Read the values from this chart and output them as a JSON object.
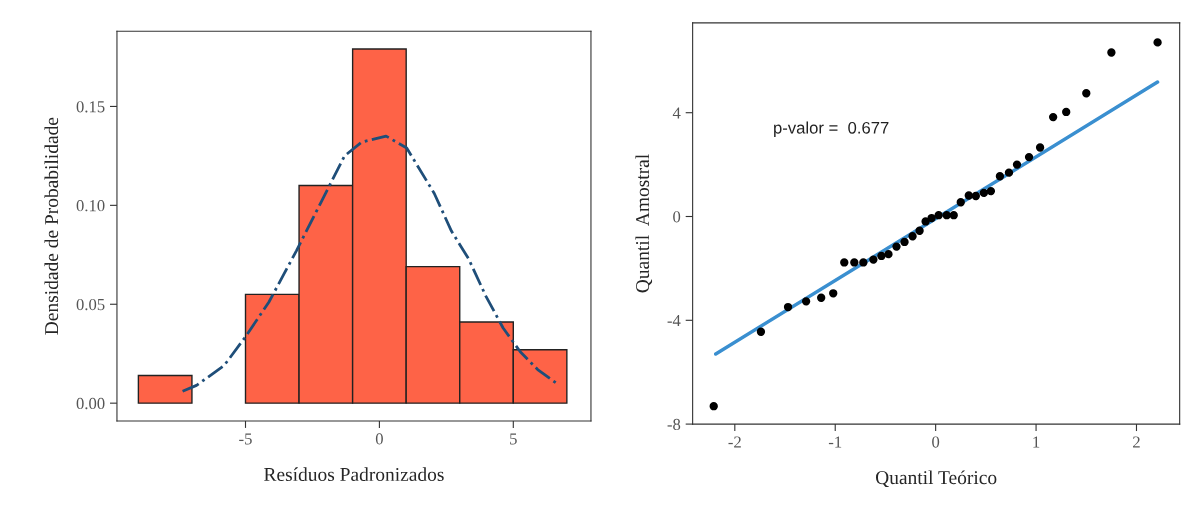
{
  "chart_data": [
    {
      "type": "histogram",
      "xlabel": "Resíduos Padronizados",
      "ylabel": "Densidade de Probabilidade",
      "bins": [
        -9,
        -7,
        -5,
        -3,
        -1,
        1,
        3,
        5,
        7
      ],
      "values": [
        0.014,
        0,
        0.055,
        0.11,
        0.179,
        0.069,
        0.041,
        0.027
      ],
      "color": "#fe6347",
      "series": [
        {
          "type": "line",
          "color": "#1f4e79",
          "line_style": "dashdot",
          "x": [
            -7.35,
            -6.83,
            -5.8,
            -5.03,
            -4.13,
            -3.1,
            -2.2,
            -1.3,
            -0.66,
            0.25,
            1.02,
            2.05,
            2.69,
            3.33,
            3.98,
            4.62,
            5.26,
            5.91,
            6.62
          ],
          "values": [
            0.006,
            0.009,
            0.019,
            0.033,
            0.051,
            0.077,
            0.101,
            0.125,
            0.132,
            0.135,
            0.129,
            0.106,
            0.087,
            0.073,
            0.054,
            0.038,
            0.026,
            0.017,
            0.01
          ]
        }
      ],
      "xlim": [
        -9.8,
        7.9
      ],
      "ylim": [
        -0.009,
        0.188
      ],
      "xticks": [
        -5,
        0,
        5
      ],
      "yticks": [
        {
          "value": 0,
          "label": "0.00"
        },
        {
          "value": 0.05,
          "label": "0.05"
        },
        {
          "value": 0.1,
          "label": "0.10"
        },
        {
          "value": 0.15,
          "label": "0.15"
        }
      ],
      "grid": false,
      "legend": false
    },
    {
      "type": "scatter",
      "xlabel": "Quantil Teórico",
      "ylabel": "Quantil  Amostral",
      "series": [
        {
          "type": "scatter",
          "color": "#000000",
          "marker": "circle",
          "x": [
            -2.21,
            -1.74,
            -1.47,
            -1.29,
            -1.14,
            -1.02,
            -0.91,
            -0.81,
            -0.72,
            -0.62,
            -0.54,
            -0.47,
            -0.39,
            -0.31,
            -0.23,
            -0.16,
            -0.1,
            -0.04,
            0.03,
            0.11,
            0.18,
            0.25,
            0.33,
            0.4,
            0.48,
            0.55,
            0.64,
            0.73,
            0.81,
            0.93,
            1.04,
            1.17,
            1.3,
            1.5,
            1.75,
            2.21
          ],
          "values": [
            -7.31,
            -4.44,
            -3.49,
            -3.27,
            -3.13,
            -2.96,
            -1.77,
            -1.77,
            -1.77,
            -1.66,
            -1.52,
            -1.45,
            -1.16,
            -0.98,
            -0.76,
            -0.55,
            -0.19,
            -0.06,
            0.05,
            0.05,
            0.05,
            0.55,
            0.81,
            0.79,
            0.91,
            0.98,
            1.55,
            1.69,
            2.0,
            2.29,
            2.66,
            3.83,
            4.03,
            4.75,
            6.32,
            6.71
          ]
        },
        {
          "type": "line",
          "color": "#3a8fd0",
          "line_style": "solid",
          "x": [
            -2.19,
            2.21
          ],
          "values": [
            -5.3,
            5.18
          ]
        }
      ],
      "annotations": [
        "p-valor =  0.677"
      ],
      "xlim": [
        -2.42,
        2.43
      ],
      "ylim": [
        -8,
        7.46
      ],
      "xticks": [
        -2,
        -1,
        0,
        1,
        2
      ],
      "yticks": [
        -8,
        -4,
        0,
        4
      ],
      "grid": false,
      "legend": false
    }
  ]
}
